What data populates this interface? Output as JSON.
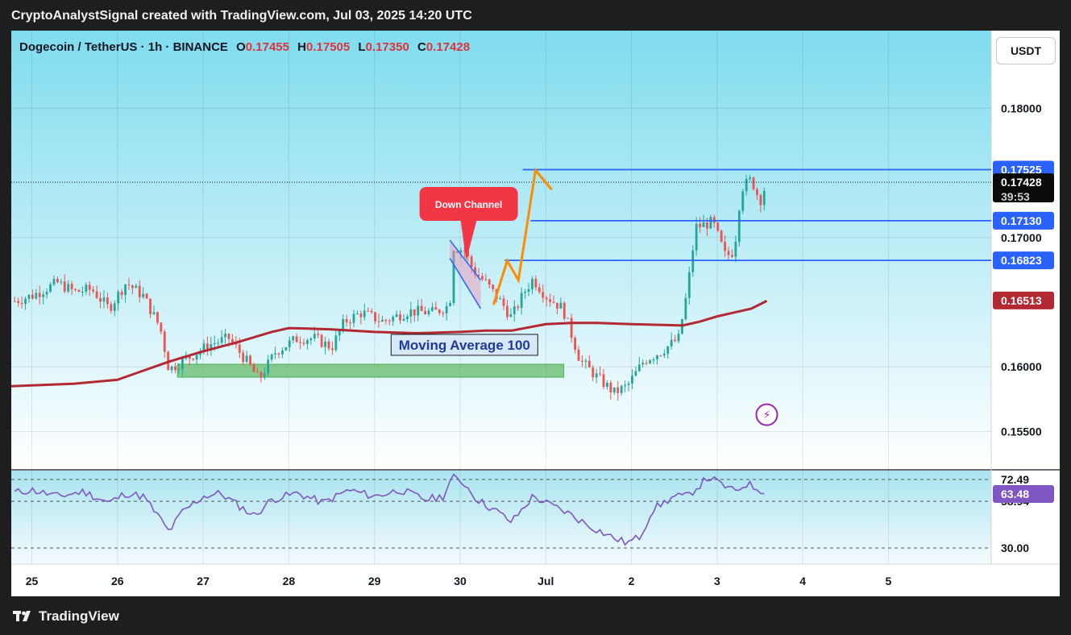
{
  "header": {
    "caption": "CryptoAnalystSignal created with TradingView.com, Jul 03, 2025 14:20 UTC"
  },
  "legend": {
    "symbol": "Dogecoin / TetherUS · 1h · BINANCE",
    "open_k": "O",
    "open_v": "0.17455",
    "high_k": "H",
    "high_v": "0.17505",
    "low_k": "L",
    "low_v": "0.17350",
    "close_k": "C",
    "close_v": "0.17428"
  },
  "currency_button": "USDT",
  "footer": {
    "brand": "TradingView"
  },
  "colors": {
    "bg_top": "#7fdcee",
    "bg_bottom": "#ffffff",
    "candle_up": "#26a69a",
    "candle_down": "#ef5350",
    "ma": "#b22833",
    "levels": "#2962ff",
    "callout": "#f23645",
    "arrow": "#ff8c00",
    "zone": "#66bb6a",
    "rsi": "#7e57c2"
  },
  "chart_data": {
    "type": "candlestick",
    "symbol": "Dogecoin / TetherUS",
    "timeframe": "1h",
    "exchange": "BINANCE",
    "quote_currency": "USDT",
    "y_ticks": [
      "0.18000",
      "0.17000",
      "0.16000",
      "0.15500"
    ],
    "y_tick_values": [
      0.18,
      0.17,
      0.16,
      0.155
    ],
    "ylim": [
      0.1521,
      0.186
    ],
    "x_ticks": [
      "25",
      "26",
      "27",
      "28",
      "29",
      "30",
      "Jul",
      "2",
      "3",
      "4",
      "5"
    ],
    "x_tick_days": [
      0,
      1,
      2,
      3,
      4,
      5,
      6,
      7,
      8,
      9,
      10
    ],
    "x_range_days": [
      -0.24,
      11.2
    ],
    "last_day": 8.58,
    "price_labels": [
      {
        "text": "0.17525",
        "value": 0.17525,
        "kind": "level"
      },
      {
        "text": "0.17428",
        "value": 0.17428,
        "kind": "last",
        "sub": "39:53"
      },
      {
        "text": "0.17130",
        "value": 0.1713,
        "kind": "level"
      },
      {
        "text": "0.16823",
        "value": 0.16823,
        "kind": "level"
      },
      {
        "text": "0.16513",
        "value": 0.16513,
        "kind": "ma"
      }
    ],
    "horizontal_levels": [
      {
        "value": 0.17525,
        "from_day": 5.73
      },
      {
        "value": 0.1713,
        "from_day": 5.82
      },
      {
        "value": 0.16823,
        "from_day": 5.52
      }
    ],
    "anchors": [
      [
        -0.24,
        0.165
      ],
      [
        0.0,
        0.1655
      ],
      [
        0.3,
        0.1665
      ],
      [
        0.5,
        0.1658
      ],
      [
        0.7,
        0.166
      ],
      [
        0.9,
        0.1645
      ],
      [
        1.1,
        0.1665
      ],
      [
        1.3,
        0.1655
      ],
      [
        1.5,
        0.163
      ],
      [
        1.6,
        0.1598
      ],
      [
        1.9,
        0.161
      ],
      [
        2.1,
        0.1618
      ],
      [
        2.3,
        0.1622
      ],
      [
        2.5,
        0.1605
      ],
      [
        2.65,
        0.159
      ],
      [
        2.85,
        0.1612
      ],
      [
        3.1,
        0.1622
      ],
      [
        3.3,
        0.1622
      ],
      [
        3.5,
        0.1615
      ],
      [
        3.65,
        0.1635
      ],
      [
        3.85,
        0.1642
      ],
      [
        4.1,
        0.1635
      ],
      [
        4.4,
        0.1643
      ],
      [
        4.7,
        0.1642
      ],
      [
        4.88,
        0.1648
      ],
      [
        4.91,
        0.1693
      ],
      [
        5.05,
        0.169
      ],
      [
        5.15,
        0.1675
      ],
      [
        5.3,
        0.1665
      ],
      [
        5.5,
        0.1648
      ],
      [
        5.6,
        0.1638
      ],
      [
        5.75,
        0.1658
      ],
      [
        5.85,
        0.1668
      ],
      [
        6.0,
        0.1655
      ],
      [
        6.2,
        0.1645
      ],
      [
        6.4,
        0.1605
      ],
      [
        6.6,
        0.1592
      ],
      [
        6.8,
        0.158
      ],
      [
        6.95,
        0.1585
      ],
      [
        7.15,
        0.1605
      ],
      [
        7.35,
        0.1612
      ],
      [
        7.55,
        0.1622
      ],
      [
        7.65,
        0.1658
      ],
      [
        7.75,
        0.1708
      ],
      [
        7.95,
        0.1712
      ],
      [
        8.1,
        0.1685
      ],
      [
        8.2,
        0.169
      ],
      [
        8.28,
        0.1738
      ],
      [
        8.4,
        0.1745
      ],
      [
        8.5,
        0.1728
      ],
      [
        8.58,
        0.17428
      ]
    ],
    "moving_average": {
      "label": "Moving Average 100",
      "points": [
        [
          -0.24,
          0.1585
        ],
        [
          0.5,
          0.1587
        ],
        [
          1.0,
          0.159
        ],
        [
          1.3,
          0.1597
        ],
        [
          1.6,
          0.1604
        ],
        [
          2.0,
          0.1612
        ],
        [
          2.4,
          0.1619
        ],
        [
          2.8,
          0.1627
        ],
        [
          3.0,
          0.163
        ],
        [
          3.5,
          0.1629
        ],
        [
          4.0,
          0.1627
        ],
        [
          4.5,
          0.1626
        ],
        [
          5.0,
          0.1627
        ],
        [
          5.3,
          0.1628
        ],
        [
          5.6,
          0.1628
        ],
        [
          6.0,
          0.1633
        ],
        [
          6.3,
          0.1634
        ],
        [
          6.6,
          0.1634
        ],
        [
          7.0,
          0.1633
        ],
        [
          7.6,
          0.1632
        ],
        [
          7.8,
          0.1635
        ],
        [
          8.0,
          0.1639
        ],
        [
          8.2,
          0.1642
        ],
        [
          8.4,
          0.1645
        ],
        [
          8.58,
          0.1651
        ]
      ]
    },
    "annotations": {
      "down_channel_label": "Down Channel",
      "down_channel": {
        "upper": [
          [
            4.88,
            0.1698
          ],
          [
            5.24,
            0.1667
          ]
        ],
        "lower": [
          [
            4.88,
            0.1684
          ],
          [
            5.24,
            0.1645
          ]
        ]
      },
      "ma_label": "Moving Average 100",
      "ma_label_anchor": [
        5.05,
        0.1617
      ],
      "callout_anchor": [
        5.07,
        0.1682
      ],
      "callout_center": [
        5.1,
        0.1726
      ],
      "support_zone": {
        "x0": 1.7,
        "x1": 6.21,
        "y0": 0.1592,
        "y1": 0.1602
      },
      "projection_path": [
        [
          5.39,
          0.1648
        ],
        [
          5.55,
          0.1682
        ],
        [
          5.68,
          0.1667
        ],
        [
          5.88,
          0.1752
        ],
        [
          6.07,
          0.1737
        ]
      ],
      "flash_icon_at": [
        8.58,
        0.1563
      ]
    },
    "rsi": {
      "levels": [
        72.49,
        58.94,
        30.0
      ],
      "level_labels": [
        "72.49",
        "58.94",
        "30.00"
      ],
      "current": 63.48,
      "current_label": "63.48",
      "ylim": [
        20,
        78
      ],
      "anchors": [
        [
          -0.24,
          64
        ],
        [
          0.0,
          66
        ],
        [
          0.3,
          62
        ],
        [
          0.6,
          65
        ],
        [
          0.9,
          58
        ],
        [
          1.1,
          64
        ],
        [
          1.3,
          62
        ],
        [
          1.5,
          48
        ],
        [
          1.6,
          40
        ],
        [
          1.75,
          52
        ],
        [
          2.0,
          62
        ],
        [
          2.2,
          64
        ],
        [
          2.45,
          55
        ],
        [
          2.6,
          50
        ],
        [
          2.8,
          60
        ],
        [
          3.1,
          64
        ],
        [
          3.4,
          58
        ],
        [
          3.7,
          66
        ],
        [
          4.0,
          62
        ],
        [
          4.3,
          66
        ],
        [
          4.6,
          60
        ],
        [
          4.8,
          62
        ],
        [
          4.91,
          74
        ],
        [
          5.05,
          70
        ],
        [
          5.2,
          60
        ],
        [
          5.45,
          52
        ],
        [
          5.6,
          46
        ],
        [
          5.85,
          62
        ],
        [
          6.0,
          58
        ],
        [
          6.25,
          52
        ],
        [
          6.5,
          44
        ],
        [
          6.8,
          36
        ],
        [
          6.95,
          33
        ],
        [
          7.1,
          37
        ],
        [
          7.25,
          54
        ],
        [
          7.5,
          62
        ],
        [
          7.65,
          62
        ],
        [
          7.9,
          74
        ],
        [
          8.1,
          68
        ],
        [
          8.2,
          65
        ],
        [
          8.35,
          70
        ],
        [
          8.5,
          66
        ],
        [
          8.58,
          65.5
        ]
      ]
    }
  }
}
